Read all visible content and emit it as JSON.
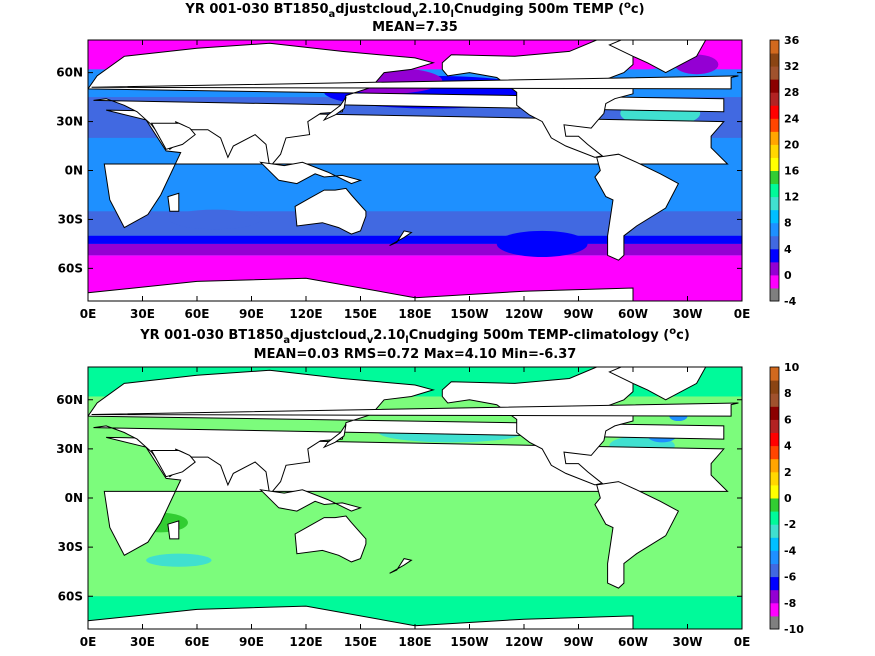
{
  "chart_data": [
    {
      "type": "heatmap",
      "title_prefix": "YR 001-030 BT1850",
      "title_sub1": "a",
      "title_mid1": "djustcloud",
      "title_sub2": "v",
      "title_mid2": "2.10",
      "title_sub3": "l",
      "title_suffix": "Cnudging 500m TEMP (",
      "title_sup": "o",
      "title_unit": "c)",
      "stats": "MEAN=7.35",
      "x_ticks": [
        "0E",
        "30E",
        "60E",
        "90E",
        "120E",
        "150E",
        "180E",
        "150W",
        "120W",
        "90W",
        "60W",
        "30W",
        "0E"
      ],
      "y_ticks": [
        "60N",
        "30N",
        "0N",
        "30S",
        "60S"
      ],
      "y_tick_lats": [
        60,
        30,
        0,
        -30,
        -60
      ],
      "xlim": [
        0,
        360
      ],
      "ylim": [
        -80,
        80
      ],
      "colorbar": {
        "ticks": [
          "36",
          "32",
          "28",
          "24",
          "20",
          "16",
          "12",
          "8",
          "4",
          "0",
          "-4"
        ],
        "colors": [
          "#7f7f7f",
          "#ff00ff",
          "#9400d3",
          "#0000ff",
          "#4169e1",
          "#1e90ff",
          "#00bfff",
          "#40e0d0",
          "#00fa9a",
          "#32cd32",
          "#ffff00",
          "#ffd700",
          "#ffa500",
          "#ff4500",
          "#ff0000",
          "#b22222",
          "#8b0000",
          "#a0522d",
          "#8b4513",
          "#d2691e"
        ]
      },
      "field_colors": {
        "polar_south": "#ff00ff",
        "band_south": "#9400d3",
        "acc": "#0000ff",
        "subtropical": "#4169e1",
        "tropical": "#1e90ff",
        "north_pacific": "#0000ff",
        "north_pacific_west": "#9400d3",
        "arctic": "#ff00ff",
        "gulfstream": "#40e0d0",
        "north_atlantic": "#1e90ff",
        "nordic": "#9400d3",
        "land": "#ffffff",
        "missing": "#c8c8c8"
      }
    },
    {
      "type": "heatmap",
      "title_prefix": "YR 001-030 BT1850",
      "title_sub1": "a",
      "title_mid1": "djustcloud",
      "title_sub2": "v",
      "title_mid2": "2.10",
      "title_sub3": "l",
      "title_suffix": "Cnudging 500m TEMP-climatology (",
      "title_sup": "o",
      "title_unit": "c)",
      "stats": "MEAN=0.03   RMS=0.72   Max=4.10   Min=-6.37",
      "x_ticks": [
        "0E",
        "30E",
        "60E",
        "90E",
        "120E",
        "150E",
        "180E",
        "150W",
        "120W",
        "90W",
        "60W",
        "30W",
        "0E"
      ],
      "y_ticks": [
        "60N",
        "30N",
        "0N",
        "30S",
        "60S"
      ],
      "y_tick_lats": [
        60,
        30,
        0,
        -30,
        -60
      ],
      "xlim": [
        0,
        360
      ],
      "ylim": [
        -80,
        80
      ],
      "colorbar": {
        "ticks": [
          "10",
          "8",
          "6",
          "4",
          "2",
          "0",
          "-2",
          "-4",
          "-6",
          "-8",
          "-10"
        ],
        "colors": [
          "#7f7f7f",
          "#ff00ff",
          "#9400d3",
          "#0000ff",
          "#4169e1",
          "#1e90ff",
          "#00bfff",
          "#40e0d0",
          "#00fa9a",
          "#32cd32",
          "#ffff00",
          "#ffd700",
          "#ffa500",
          "#ff4500",
          "#ff0000",
          "#b22222",
          "#8b0000",
          "#a0522d",
          "#8b4513",
          "#d2691e"
        ]
      },
      "field_colors": {
        "base": "#7cfc7c",
        "near_zero": "#00fa9a",
        "negative": "#40e0d0",
        "cold": "#1e90ff",
        "warm": "#32cd32",
        "hot": "#ffff00",
        "land": "#ffffff"
      }
    }
  ]
}
